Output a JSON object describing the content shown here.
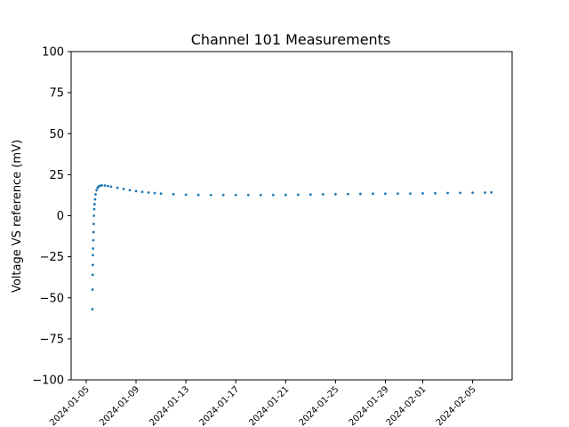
{
  "chart_data": {
    "type": "scatter",
    "title": "Channel 101 Measurements",
    "xlabel": "",
    "ylabel": "Voltage VS reference (mV)",
    "ylim": [
      -100,
      100
    ],
    "xlim": [
      "2024-01-03T19:00",
      "2024-02-08T04:00"
    ],
    "yticks": [
      {
        "value": -100,
        "label": "−100"
      },
      {
        "value": -75,
        "label": "−75"
      },
      {
        "value": -50,
        "label": "−50"
      },
      {
        "value": -25,
        "label": "−25"
      },
      {
        "value": 0,
        "label": "0"
      },
      {
        "value": 25,
        "label": "25"
      },
      {
        "value": 50,
        "label": "50"
      },
      {
        "value": 75,
        "label": "75"
      },
      {
        "value": 100,
        "label": "100"
      }
    ],
    "xticks": [
      {
        "value": "2024-01-05",
        "label": "2024-01-05"
      },
      {
        "value": "2024-01-09",
        "label": "2024-01-09"
      },
      {
        "value": "2024-01-13",
        "label": "2024-01-13"
      },
      {
        "value": "2024-01-17",
        "label": "2024-01-17"
      },
      {
        "value": "2024-01-21",
        "label": "2024-01-21"
      },
      {
        "value": "2024-01-25",
        "label": "2024-01-25"
      },
      {
        "value": "2024-01-29",
        "label": "2024-01-29"
      },
      {
        "value": "2024-02-01",
        "label": "2024-02-01"
      },
      {
        "value": "2024-02-05",
        "label": "2024-02-05"
      }
    ],
    "grid": false,
    "color": "#1f77b4",
    "series": [
      {
        "x": [
          "2024-01-05T12:00",
          "2024-01-05T12:15",
          "2024-01-05T12:30",
          "2024-01-05T12:45",
          "2024-01-05T13:00",
          "2024-01-05T13:20",
          "2024-01-05T13:40",
          "2024-01-05T14:00",
          "2024-01-05T14:30",
          "2024-01-05T15:00",
          "2024-01-05T15:30",
          "2024-01-05T16:00",
          "2024-01-05T17:00",
          "2024-01-05T18:00",
          "2024-01-05T20:00",
          "2024-01-05T22:00",
          "2024-01-06T00:00",
          "2024-01-06T03:00",
          "2024-01-06T06:00",
          "2024-01-06T12:00",
          "2024-01-06T18:00",
          "2024-01-07T00:00",
          "2024-01-07T12:00",
          "2024-01-08T00:00",
          "2024-01-08T12:00",
          "2024-01-09T00:00",
          "2024-01-09T12:00",
          "2024-01-10T00:00",
          "2024-01-10T12:00",
          "2024-01-11T00:00",
          "2024-01-12T00:00",
          "2024-01-13T00:00",
          "2024-01-14T00:00",
          "2024-01-15T00:00",
          "2024-01-16T00:00",
          "2024-01-17T00:00",
          "2024-01-18T00:00",
          "2024-01-19T00:00",
          "2024-01-20T00:00",
          "2024-01-21T00:00",
          "2024-01-22T00:00",
          "2024-01-23T00:00",
          "2024-01-24T00:00",
          "2024-01-25T00:00",
          "2024-01-26T00:00",
          "2024-01-27T00:00",
          "2024-01-28T00:00",
          "2024-01-29T00:00",
          "2024-01-30T00:00",
          "2024-01-31T00:00",
          "2024-02-01T00:00",
          "2024-02-02T00:00",
          "2024-02-03T00:00",
          "2024-02-04T00:00",
          "2024-02-05T00:00",
          "2024-02-06T00:00",
          "2024-02-06T12:00"
        ],
        "y": [
          -57,
          -45,
          -36,
          -30,
          -24,
          -20,
          -15,
          -10,
          -5,
          0,
          4,
          7,
          10,
          13,
          15.5,
          17,
          17.8,
          18.3,
          18.5,
          18.4,
          18.1,
          17.7,
          17.0,
          16.3,
          15.6,
          15.0,
          14.5,
          14.1,
          13.8,
          13.5,
          13.1,
          12.8,
          12.7,
          12.6,
          12.6,
          12.6,
          12.6,
          12.6,
          12.6,
          12.7,
          12.8,
          12.9,
          13.0,
          13.1,
          13.2,
          13.3,
          13.4,
          13.4,
          13.5,
          13.5,
          13.6,
          13.7,
          13.8,
          13.9,
          14.0,
          14.1,
          14.2
        ]
      }
    ]
  }
}
